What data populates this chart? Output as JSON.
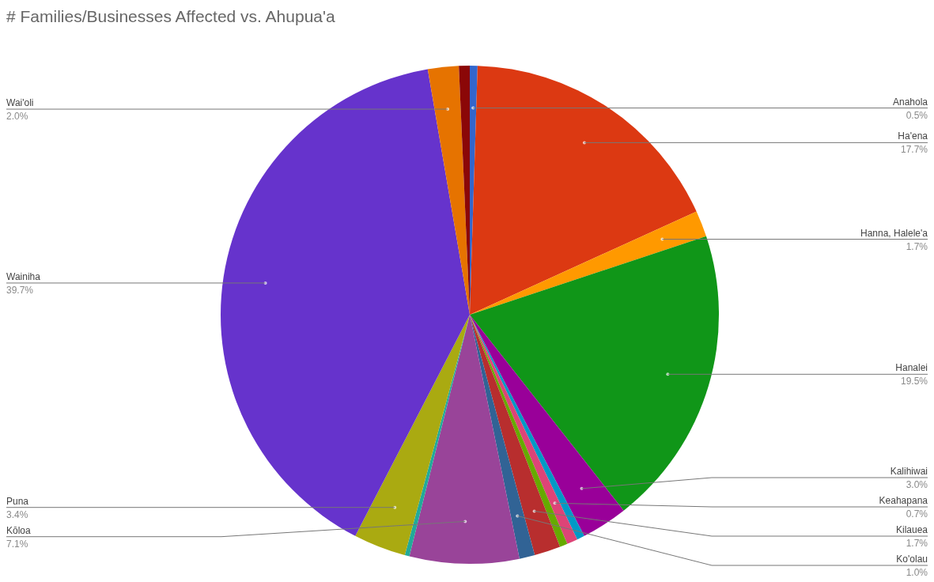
{
  "chart_data": {
    "type": "pie",
    "title": "# Families/Businesses Affected vs. Ahupua'a",
    "categories": [
      "Anahola",
      "Ha'ena",
      "Hanna, Halele'a",
      "Hanalei",
      "Kalihiwai",
      null,
      "Keahapana",
      null,
      "Kilauea",
      "Ko'olau",
      "Kōloa",
      null,
      "Puna",
      "Wainiha",
      "Wai'oli",
      null
    ],
    "values": [
      0.5,
      17.7,
      1.7,
      19.5,
      3.0,
      0.5,
      0.7,
      0.5,
      1.7,
      1.0,
      7.1,
      0.3,
      3.4,
      39.7,
      2.0,
      0.7
    ],
    "value_labels": [
      "0.5%",
      "17.7%",
      "1.7%",
      "19.5%",
      "3.0%",
      null,
      "0.7%",
      null,
      "1.7%",
      "1.0%",
      "7.1%",
      null,
      "3.4%",
      "39.7%",
      "2.0%",
      null
    ],
    "colors": [
      "#3366cc",
      "#dc3912",
      "#ff9900",
      "#109618",
      "#990099",
      "#0099c6",
      "#dd4477",
      "#66aa00",
      "#b82e2e",
      "#316395",
      "#994499",
      "#22aa99",
      "#aaaa11",
      "#6633cc",
      "#e67300",
      "#8b0707"
    ]
  }
}
